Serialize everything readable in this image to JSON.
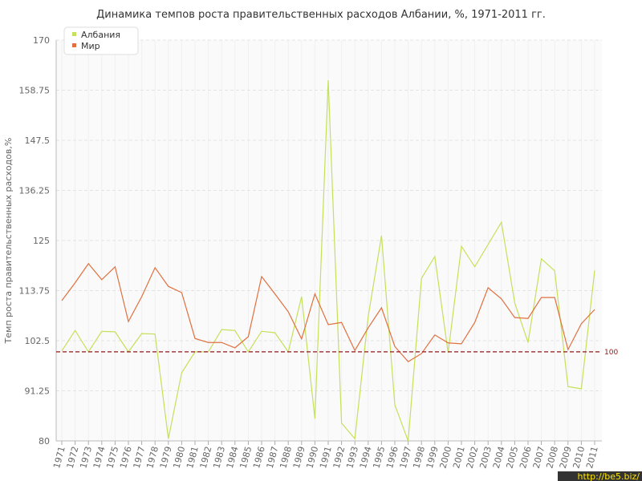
{
  "chart_data": {
    "type": "line",
    "title": "Динамика темпов роста правительственных расходов Албании, %, 1971-2011 гг.",
    "y_label": "Темп роста правительственных расходов,%",
    "categories": [
      "1971",
      "1972",
      "1973",
      "1974",
      "1975",
      "1976",
      "1977",
      "1978",
      "1979",
      "1980",
      "1981",
      "1982",
      "1983",
      "1984",
      "1985",
      "1986",
      "1987",
      "1988",
      "1989",
      "1990",
      "1991",
      "1992",
      "1993",
      "1994",
      "1995",
      "1996",
      "1997",
      "1998",
      "1999",
      "2000",
      "2001",
      "2002",
      "2003",
      "2004",
      "2005",
      "2006",
      "2007",
      "2008",
      "2009",
      "2010",
      "2011"
    ],
    "series": [
      {
        "name": "Албания",
        "color": "#c5e05a",
        "values": [
          100.2,
          104.8,
          100,
          104.6,
          104.5,
          100,
          104.1,
          104,
          80.5,
          95.3,
          100,
          100,
          105,
          104.8,
          100,
          104.6,
          104.3,
          100,
          112.4,
          85,
          161,
          84,
          80.5,
          107.9,
          126.1,
          88.1,
          80,
          116.5,
          121.4,
          99.8,
          123.7,
          119.1,
          124.1,
          129.1,
          111,
          102.1,
          120.9,
          118.2,
          92.2,
          91.7,
          118.3
        ]
      },
      {
        "name": "Мир",
        "color": "#e0703f",
        "values": [
          111.5,
          115.5,
          119.8,
          116.2,
          119.1,
          106.8,
          112.4,
          118.9,
          114.7,
          113.3,
          103,
          102.1,
          102.1,
          100.9,
          103.4,
          116.9,
          113,
          109,
          102.9,
          113,
          106.1,
          106.6,
          100.3,
          105.4,
          109.9,
          101.2,
          97.8,
          99.6,
          103.8,
          102,
          101.8,
          106.6,
          114.4,
          111.9,
          107.7,
          107.5,
          112.2,
          112.2,
          100.5,
          106.3,
          109.5
        ]
      }
    ],
    "ylim": [
      80,
      170
    ],
    "yticks": [
      80,
      91.25,
      102.5,
      113.75,
      125,
      136.25,
      147.5,
      158.75,
      170
    ],
    "reference_line": 100,
    "reference_color": "#8b1a1a",
    "grid": true,
    "legend": "upper left",
    "watermark": "http://be5.biz/"
  }
}
